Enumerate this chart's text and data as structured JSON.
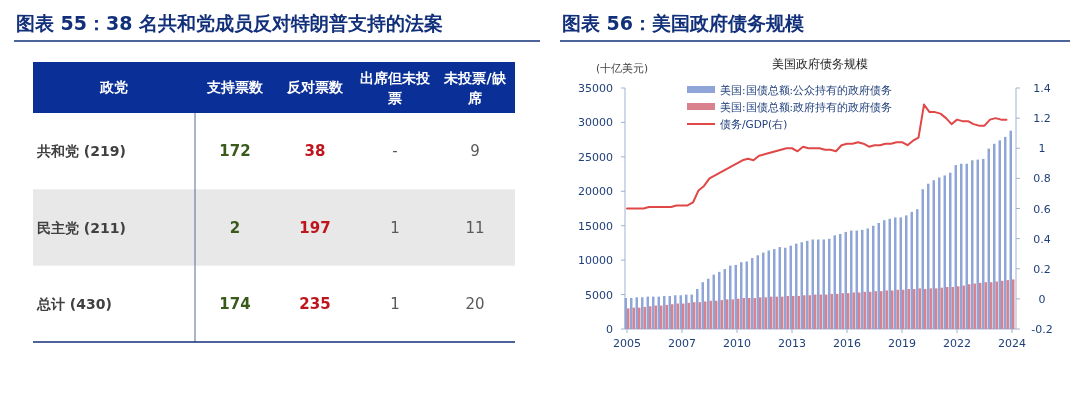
{
  "chart_data": [
    {
      "type": "other",
      "title": "图表 55：38 名共和党成员反对特朗普支持的法案",
      "ylabel": "政党",
      "categories": [
        "共和党 (219)",
        "民主党 (211)",
        "总计 (430)"
      ],
      "data_labels": true,
      "series": [
        {
          "name": "支持票数",
          "values": [
            172,
            2,
            174
          ]
        },
        {
          "name": "反对票数",
          "values": [
            38,
            197,
            235
          ]
        },
        {
          "name": "出席但未投票",
          "values": [
            null,
            1,
            1
          ],
          "value_labels": [
            "-",
            "1",
            "1"
          ]
        },
        {
          "name": "未投票/缺席",
          "values": [
            9,
            11,
            20
          ]
        }
      ]
    },
    {
      "type": "bar",
      "title": "图表 56：美国政府债务规模",
      "subtitle": "美国政府债务规模",
      "ylabel": "(十亿美元)",
      "categories": [
        "2005",
        null,
        null,
        null,
        null,
        null,
        null,
        null,
        null,
        null,
        "2007",
        null,
        null,
        null,
        null,
        null,
        null,
        null,
        null,
        null,
        "2010",
        null,
        null,
        null,
        null,
        null,
        null,
        null,
        null,
        null,
        "2013",
        null,
        null,
        null,
        null,
        null,
        null,
        null,
        null,
        null,
        "2016",
        null,
        null,
        null,
        null,
        null,
        null,
        null,
        null,
        null,
        "2019",
        null,
        null,
        null,
        null,
        null,
        null,
        null,
        null,
        null,
        "2022",
        null,
        null,
        null,
        null,
        null,
        null,
        null,
        null,
        null,
        "2024"
      ],
      "ylim": [
        0,
        35000
      ],
      "yticks": [
        0,
        5000,
        10000,
        15000,
        20000,
        25000,
        30000,
        35000
      ],
      "y2lim": [
        -0.2,
        1.4
      ],
      "y2ticks": [
        -0.2,
        0,
        0.2,
        0.4,
        0.6,
        0.8,
        1,
        1.2,
        1.4
      ],
      "legend": "top left",
      "series": [
        {
          "name": "美国:国债总额:公众持有的政府债务",
          "type": "bar",
          "color": "#8fa5d8",
          "values": [
            4500,
            4500,
            4600,
            4600,
            4700,
            4700,
            4700,
            4800,
            4800,
            4900,
            4900,
            5000,
            5000,
            5800,
            6800,
            7300,
            7900,
            8300,
            8700,
            9200,
            9300,
            9700,
            9800,
            10300,
            10700,
            11100,
            11400,
            11600,
            11900,
            11800,
            12100,
            12400,
            12600,
            12800,
            13000,
            13000,
            13000,
            13100,
            13600,
            13800,
            14100,
            14300,
            14300,
            14400,
            14600,
            15000,
            15400,
            15800,
            16000,
            16200,
            16200,
            16500,
            17000,
            17400,
            20300,
            21100,
            21600,
            22000,
            22300,
            22700,
            23800,
            24000,
            24000,
            24500,
            24600,
            24700,
            26200,
            26900,
            27400,
            27900,
            28800
          ]
        },
        {
          "name": "美国:国债总额:政府持有的政府债务",
          "type": "bar",
          "color": "#d9828e",
          "values": [
            3000,
            3100,
            3100,
            3200,
            3300,
            3400,
            3400,
            3500,
            3600,
            3700,
            3700,
            3800,
            3900,
            3900,
            4000,
            4100,
            4100,
            4200,
            4300,
            4300,
            4400,
            4500,
            4500,
            4500,
            4600,
            4600,
            4700,
            4700,
            4700,
            4800,
            4800,
            4800,
            4900,
            4900,
            5000,
            5000,
            5000,
            5100,
            5100,
            5200,
            5200,
            5300,
            5300,
            5400,
            5400,
            5500,
            5500,
            5600,
            5600,
            5700,
            5700,
            5800,
            5800,
            5900,
            5800,
            5900,
            5900,
            6000,
            6100,
            6100,
            6200,
            6300,
            6500,
            6600,
            6700,
            6800,
            6800,
            6900,
            7000,
            7100,
            7200
          ]
        },
        {
          "name": "债务/GDP(右)",
          "type": "line",
          "axis": "y2",
          "color": "#e04848",
          "values": [
            0.6,
            0.6,
            0.6,
            0.6,
            0.61,
            0.61,
            0.61,
            0.61,
            0.61,
            0.62,
            0.62,
            0.62,
            0.64,
            0.72,
            0.75,
            0.8,
            0.82,
            0.84,
            0.86,
            0.88,
            0.9,
            0.92,
            0.93,
            0.92,
            0.95,
            0.96,
            0.97,
            0.98,
            0.99,
            1.0,
            1.0,
            0.98,
            1.01,
            1.0,
            1.0,
            1.0,
            0.99,
            0.99,
            0.98,
            1.02,
            1.03,
            1.03,
            1.04,
            1.03,
            1.01,
            1.02,
            1.02,
            1.03,
            1.03,
            1.04,
            1.04,
            1.02,
            1.05,
            1.07,
            1.29,
            1.24,
            1.24,
            1.23,
            1.2,
            1.16,
            1.19,
            1.18,
            1.18,
            1.16,
            1.15,
            1.15,
            1.19,
            1.2,
            1.19,
            1.19,
            null
          ]
        }
      ]
    }
  ]
}
